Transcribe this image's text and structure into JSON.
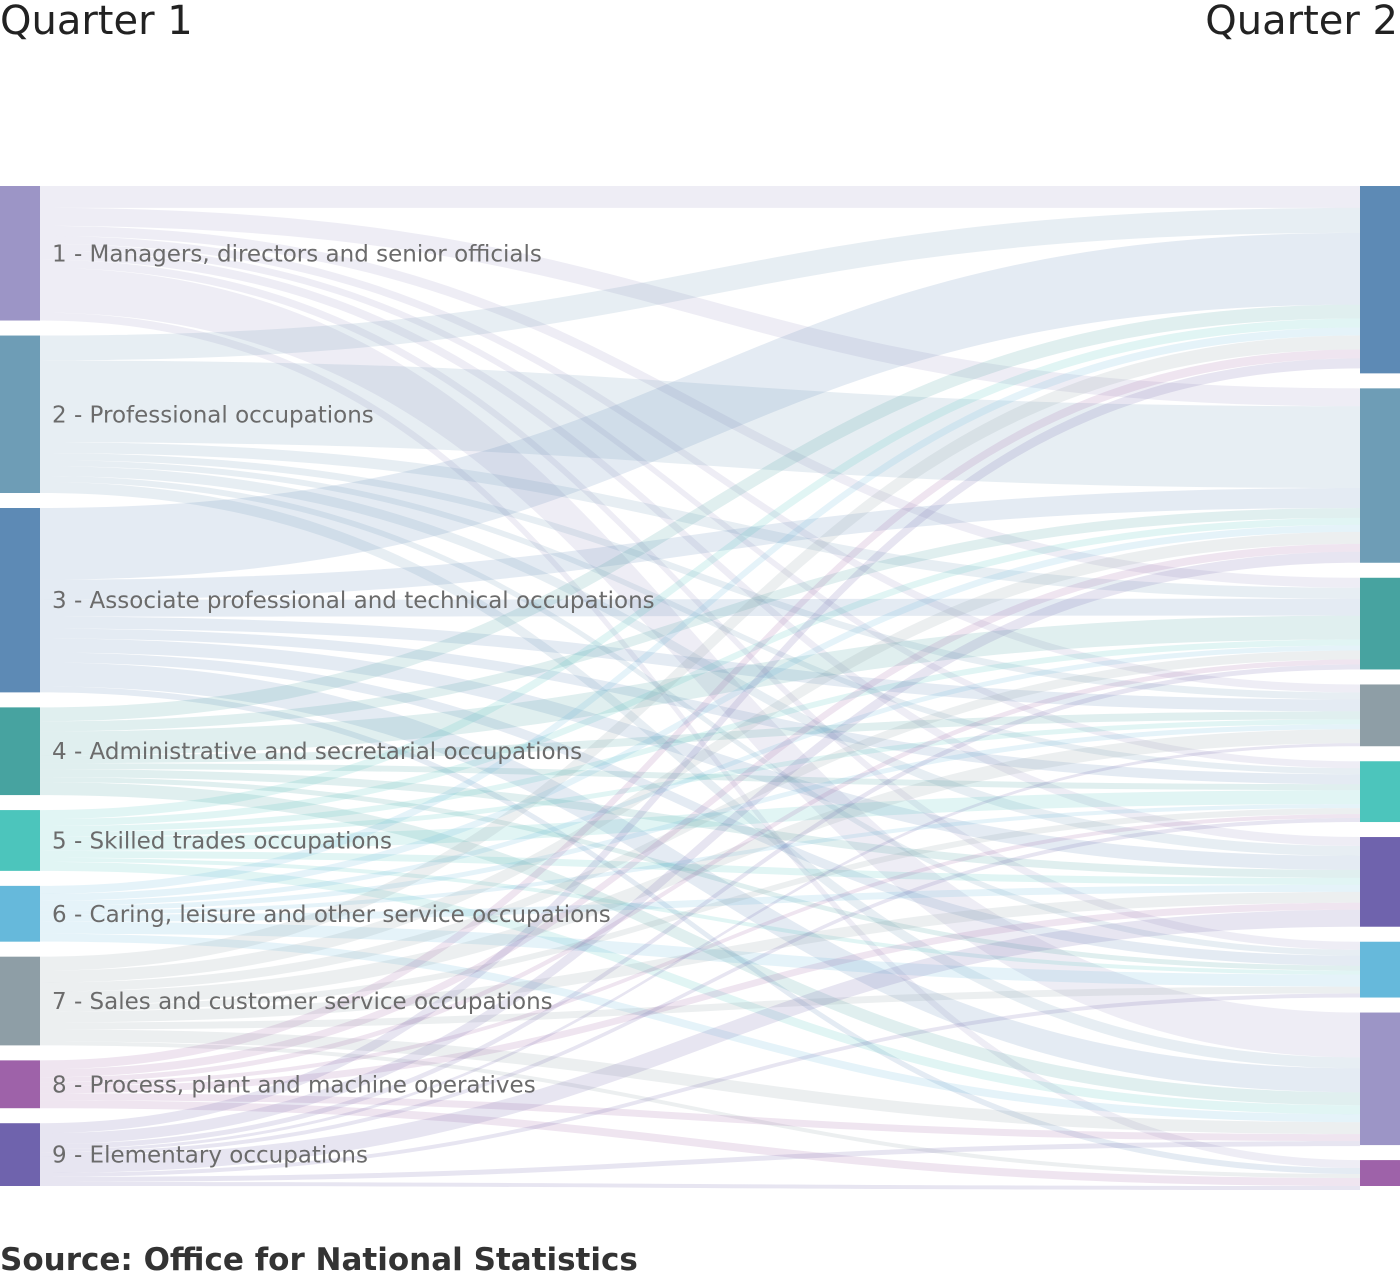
{
  "source": "Source: Office for National Statistics",
  "chart_data": {
    "type": "sankey",
    "columns": [
      "Quarter 1",
      "Quarter 2"
    ],
    "colors": {
      "1": "#9c95c6",
      "2": "#6e9db6",
      "3": "#5d8ab5",
      "4": "#47a3a0",
      "5": "#4cc5bc",
      "6": "#66b9db",
      "7": "#8e9ea6",
      "8": "#9e62a9",
      "9": "#6f63ad"
    },
    "source_nodes": [
      {
        "id": "1",
        "label": "1 - Managers, directors and senior officials",
        "value": 135
      },
      {
        "id": "2",
        "label": "2 - Professional occupations",
        "value": 158
      },
      {
        "id": "3",
        "label": "3 - Associate professional and technical occupations",
        "value": 185
      },
      {
        "id": "4",
        "label": "4 - Administrative and secretarial occupations",
        "value": 88
      },
      {
        "id": "5",
        "label": "5 - Skilled trades occupations",
        "value": 61
      },
      {
        "id": "6",
        "label": "6 - Caring, leisure and other service occupations",
        "value": 56
      },
      {
        "id": "7",
        "label": "7 - Sales and customer service occupations",
        "value": 89
      },
      {
        "id": "8",
        "label": "8 - Process, plant and machine operatives",
        "value": 48
      },
      {
        "id": "9",
        "label": "9 - Elementary occupations",
        "value": 63
      }
    ],
    "target_nodes": [
      {
        "id": "3",
        "value": 188
      },
      {
        "id": "2",
        "value": 175
      },
      {
        "id": "4",
        "value": 92
      },
      {
        "id": "7",
        "value": 62
      },
      {
        "id": "5",
        "value": 61
      },
      {
        "id": "9",
        "value": 90
      },
      {
        "id": "6",
        "value": 56
      },
      {
        "id": "1",
        "value": 133
      },
      {
        "id": "8",
        "value": 26
      }
    ],
    "links": [
      {
        "source": "1",
        "target": "1",
        "value": 45
      },
      {
        "source": "1",
        "target": "3",
        "value": 22
      },
      {
        "source": "1",
        "target": "2",
        "value": 18
      },
      {
        "source": "1",
        "target": "4",
        "value": 10
      },
      {
        "source": "1",
        "target": "7",
        "value": 8
      },
      {
        "source": "1",
        "target": "5",
        "value": 7
      },
      {
        "source": "1",
        "target": "9",
        "value": 9
      },
      {
        "source": "1",
        "target": "6",
        "value": 8
      },
      {
        "source": "1",
        "target": "8",
        "value": 8
      },
      {
        "source": "2",
        "target": "3",
        "value": 25
      },
      {
        "source": "2",
        "target": "2",
        "value": 82
      },
      {
        "source": "2",
        "target": "4",
        "value": 11
      },
      {
        "source": "2",
        "target": "7",
        "value": 7
      },
      {
        "source": "2",
        "target": "5",
        "value": 6
      },
      {
        "source": "2",
        "target": "9",
        "value": 10
      },
      {
        "source": "2",
        "target": "6",
        "value": 6
      },
      {
        "source": "2",
        "target": "1",
        "value": 11
      },
      {
        "source": "3",
        "target": "3",
        "value": 72
      },
      {
        "source": "3",
        "target": "2",
        "value": 20
      },
      {
        "source": "3",
        "target": "4",
        "value": 17
      },
      {
        "source": "3",
        "target": "7",
        "value": 12
      },
      {
        "source": "3",
        "target": "5",
        "value": 10
      },
      {
        "source": "3",
        "target": "9",
        "value": 14
      },
      {
        "source": "3",
        "target": "6",
        "value": 10
      },
      {
        "source": "3",
        "target": "1",
        "value": 24
      },
      {
        "source": "3",
        "target": "8",
        "value": 6
      },
      {
        "source": "4",
        "target": "3",
        "value": 14
      },
      {
        "source": "4",
        "target": "2",
        "value": 10
      },
      {
        "source": "4",
        "target": "4",
        "value": 24
      },
      {
        "source": "4",
        "target": "7",
        "value": 8
      },
      {
        "source": "4",
        "target": "5",
        "value": 6
      },
      {
        "source": "4",
        "target": "9",
        "value": 8
      },
      {
        "source": "4",
        "target": "6",
        "value": 5
      },
      {
        "source": "4",
        "target": "1",
        "value": 13
      },
      {
        "source": "5",
        "target": "3",
        "value": 9
      },
      {
        "source": "5",
        "target": "2",
        "value": 7
      },
      {
        "source": "5",
        "target": "4",
        "value": 6
      },
      {
        "source": "5",
        "target": "7",
        "value": 5
      },
      {
        "source": "5",
        "target": "5",
        "value": 14
      },
      {
        "source": "5",
        "target": "9",
        "value": 7
      },
      {
        "source": "5",
        "target": "6",
        "value": 4
      },
      {
        "source": "5",
        "target": "1",
        "value": 9
      },
      {
        "source": "6",
        "target": "3",
        "value": 8
      },
      {
        "source": "6",
        "target": "2",
        "value": 7
      },
      {
        "source": "6",
        "target": "4",
        "value": 5
      },
      {
        "source": "6",
        "target": "7",
        "value": 5
      },
      {
        "source": "6",
        "target": "5",
        "value": 4
      },
      {
        "source": "6",
        "target": "9",
        "value": 7
      },
      {
        "source": "6",
        "target": "6",
        "value": 12
      },
      {
        "source": "6",
        "target": "1",
        "value": 8
      },
      {
        "source": "7",
        "target": "3",
        "value": 14
      },
      {
        "source": "7",
        "target": "2",
        "value": 12
      },
      {
        "source": "7",
        "target": "4",
        "value": 9
      },
      {
        "source": "7",
        "target": "7",
        "value": 14
      },
      {
        "source": "7",
        "target": "5",
        "value": 6
      },
      {
        "source": "7",
        "target": "9",
        "value": 11
      },
      {
        "source": "7",
        "target": "6",
        "value": 7
      },
      {
        "source": "7",
        "target": "1",
        "value": 12
      },
      {
        "source": "7",
        "target": "8",
        "value": 4
      },
      {
        "source": "8",
        "target": "3",
        "value": 9
      },
      {
        "source": "8",
        "target": "2",
        "value": 8
      },
      {
        "source": "8",
        "target": "4",
        "value": 5
      },
      {
        "source": "8",
        "target": "5",
        "value": 4
      },
      {
        "source": "8",
        "target": "9",
        "value": 7
      },
      {
        "source": "8",
        "target": "1",
        "value": 7
      },
      {
        "source": "8",
        "target": "8",
        "value": 8
      },
      {
        "source": "9",
        "target": "3",
        "value": 10
      },
      {
        "source": "9",
        "target": "2",
        "value": 11
      },
      {
        "source": "9",
        "target": "4",
        "value": 5
      },
      {
        "source": "9",
        "target": "7",
        "value": 3
      },
      {
        "source": "9",
        "target": "5",
        "value": 4
      },
      {
        "source": "9",
        "target": "9",
        "value": 17
      },
      {
        "source": "9",
        "target": "6",
        "value": 4
      },
      {
        "source": "9",
        "target": "1",
        "value": 5
      },
      {
        "source": "9",
        "target": "8",
        "value": 4
      }
    ]
  }
}
